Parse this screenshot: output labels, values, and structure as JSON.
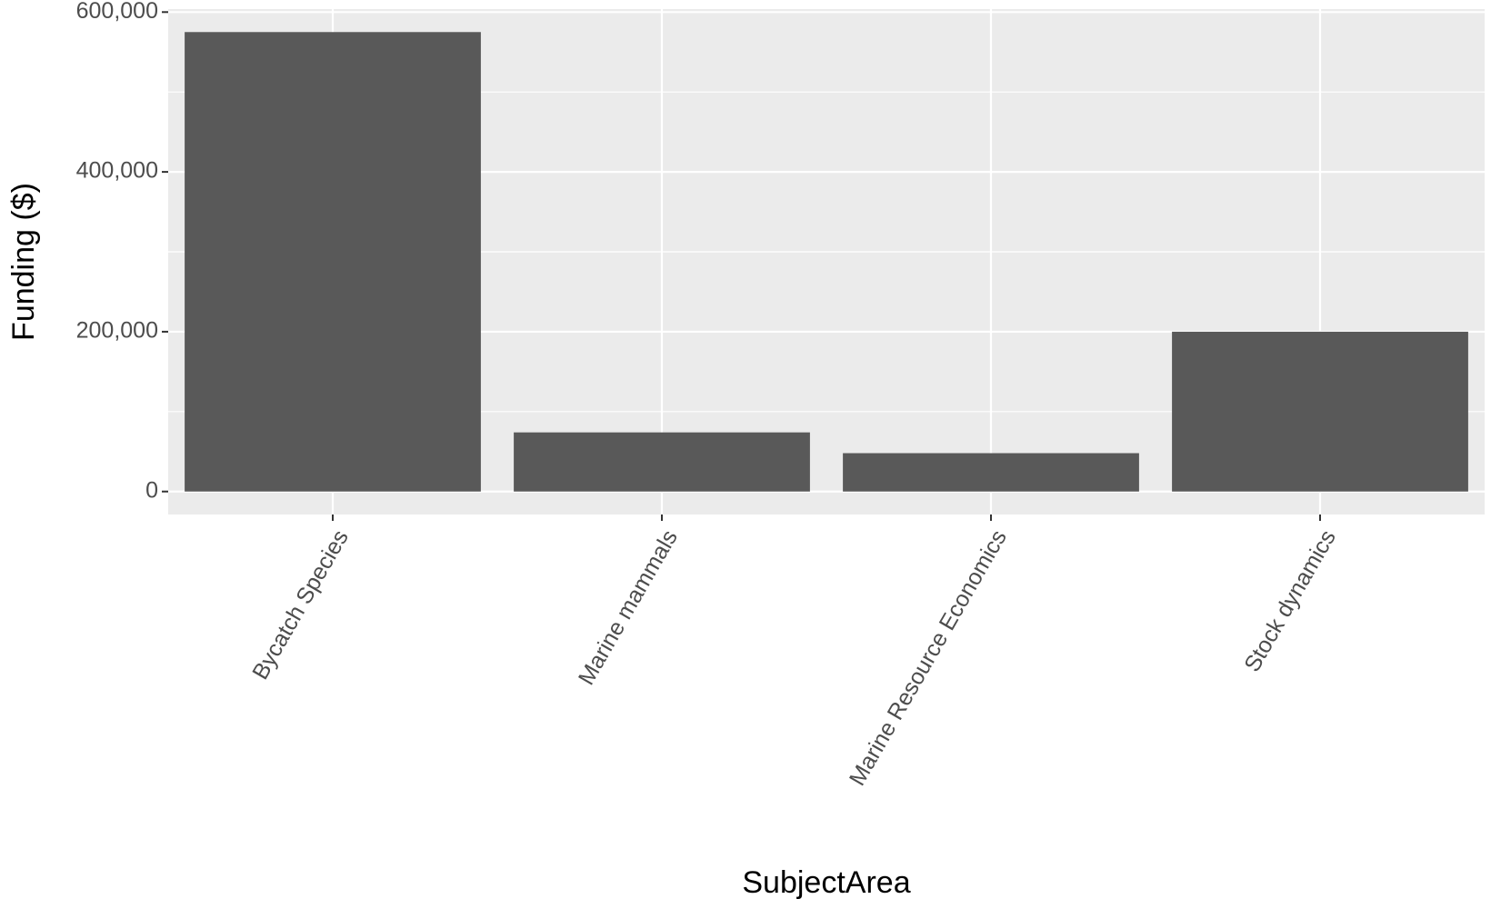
{
  "chart_data": {
    "type": "bar",
    "x_label": "SubjectArea",
    "y_label": "Funding ($)",
    "categories": [
      "Bycatch Species",
      "Marine mammals",
      "Marine Resource Economics",
      "Stock dynamics"
    ],
    "values": [
      575000,
      74000,
      48000,
      200000
    ],
    "color": "#595959",
    "ylim": [
      -28750,
      603750
    ],
    "yticks": [
      0,
      {
        "value": 200000,
        "label": "200,000"
      },
      {
        "value": 400000,
        "label": "400,000"
      },
      {
        "value": 600000,
        "label": "600,000"
      }
    ],
    "minor_yticks": [
      100000,
      300000,
      500000
    ],
    "grid": true
  }
}
